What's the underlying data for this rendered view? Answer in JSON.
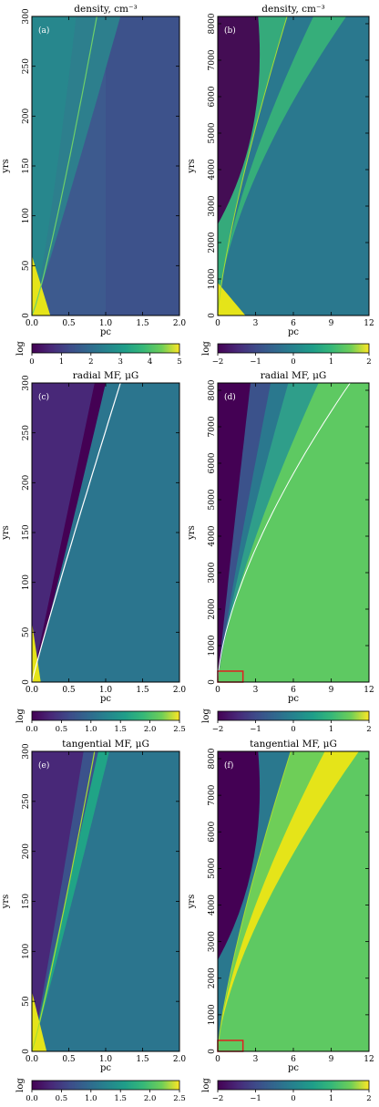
{
  "chart_data": [
    {
      "type": "heatmap",
      "panel_label": "(a)",
      "title": "density, cm⁻³",
      "xlabel": "pc",
      "ylabel": "yrs",
      "xlim": [
        0,
        2.0
      ],
      "ylim": [
        0,
        300
      ],
      "xticks": [
        "0.0",
        "0.5",
        "1.0",
        "1.5",
        "2.0"
      ],
      "yticks": [
        "0",
        "50",
        "100",
        "150",
        "200",
        "250",
        "300"
      ],
      "colorbar": {
        "label": "log",
        "range": [
          0,
          5
        ],
        "ticks": [
          "0",
          "1",
          "2",
          "3",
          "4",
          "5"
        ]
      },
      "colors": {
        "background": "#3d5a8e",
        "outer": "#3e4c89",
        "wedge": "#2d7f8d",
        "peak": "#e5e419",
        "curve": "#6ecf6a"
      },
      "features": {
        "shell_front_x_at_top": 1.2,
        "inner_line_x_at_top": 0.88,
        "lines": [
          "front"
        ]
      }
    },
    {
      "type": "heatmap",
      "panel_label": "(b)",
      "title": "density, cm⁻³",
      "xlabel": "pc",
      "ylabel": "yrs",
      "xlim": [
        0,
        12
      ],
      "ylim": [
        0,
        8200
      ],
      "xticks": [
        "0",
        "3",
        "6",
        "9",
        "12"
      ],
      "yticks": [
        "0",
        "1000",
        "2000",
        "3000",
        "4000",
        "5000",
        "6000",
        "7000",
        "8000"
      ],
      "colorbar": {
        "label": "log",
        "range": [
          -2,
          2
        ],
        "ticks": [
          "−2",
          "−1",
          "0",
          "1",
          "2"
        ]
      },
      "colors": {
        "background": "#2a788e",
        "cavity": "#440d54",
        "shell": "#38b777",
        "peak": "#e5e419",
        "curve": "#a8db34"
      },
      "features": {
        "cavity_bulge_x": 4.0,
        "front_x_at_top": 5.5,
        "outer_shell_x_at_top": 10.2,
        "inset_box": {
          "x": [
            0,
            2
          ],
          "y": [
            0,
            300
          ]
        }
      }
    },
    {
      "type": "heatmap",
      "panel_label": "(c)",
      "title": "radial MF, μG",
      "xlabel": "pc",
      "ylabel": "yrs",
      "xlim": [
        0,
        2.0
      ],
      "ylim": [
        0,
        300
      ],
      "xticks": [
        "0.0",
        "0.5",
        "1.0",
        "1.5",
        "2.0"
      ],
      "yticks": [
        "0",
        "50",
        "100",
        "150",
        "200",
        "250",
        "300"
      ],
      "colorbar": {
        "label": "log",
        "range": [
          0,
          2.5
        ],
        "ticks": [
          "0.0",
          "0.5",
          "1.0",
          "1.5",
          "2.0",
          "2.5"
        ]
      },
      "colors": {
        "background": "#2b758e",
        "inner": "#3b528b",
        "band": "#440154",
        "peak": "#e5e419",
        "curve": "#ffffff"
      },
      "features": {
        "band_x_at_top": 1.0,
        "white_line_x_at_top": 1.2
      }
    },
    {
      "type": "heatmap",
      "panel_label": "(d)",
      "title": "radial MF, μG",
      "xlabel": "pc",
      "ylabel": "yrs",
      "xlim": [
        0,
        12
      ],
      "ylim": [
        0,
        8200
      ],
      "xticks": [
        "0",
        "3",
        "6",
        "9",
        "12"
      ],
      "yticks": [
        "0",
        "1000",
        "2000",
        "3000",
        "4000",
        "5000",
        "6000",
        "7000",
        "8000"
      ],
      "colorbar": {
        "label": "log",
        "range": [
          -2,
          2
        ],
        "ticks": [
          "−2",
          "−1",
          "0",
          "1",
          "2"
        ]
      },
      "colors": {
        "background": "#5ec962",
        "cavity": "#440154",
        "mid": "#2a788e",
        "curve": "#ffffff"
      },
      "features": {
        "cavity_x_at_top": 5.6,
        "white_line_x_at_top": 10.5,
        "inset_box": {
          "x": [
            0,
            2
          ],
          "y": [
            0,
            300
          ]
        }
      }
    },
    {
      "type": "heatmap",
      "panel_label": "(e)",
      "title": "tangential MF, μG",
      "xlabel": "pc",
      "ylabel": "yrs",
      "xlim": [
        0,
        2.0
      ],
      "ylim": [
        0,
        300
      ],
      "xticks": [
        "0.0",
        "0.5",
        "1.0",
        "1.5",
        "2.0"
      ],
      "yticks": [
        "0",
        "50",
        "100",
        "150",
        "200",
        "250",
        "300"
      ],
      "colorbar": {
        "label": "log",
        "range": [
          0,
          2.5
        ],
        "ticks": [
          "0.0",
          "0.5",
          "1.0",
          "1.5",
          "2.0",
          "2.5"
        ]
      },
      "colors": {
        "background": "#2b758e",
        "inner": "#3b528b",
        "band": "#20a486",
        "peak": "#e5e419",
        "curve": "#a8db34"
      },
      "features": {
        "band_x_at_top": 1.05,
        "inner_line_x_at_top": 0.85
      }
    },
    {
      "type": "heatmap",
      "panel_label": "(f)",
      "title": "tangential MF, μG",
      "xlabel": "pc",
      "ylabel": "yrs",
      "xlim": [
        0,
        12
      ],
      "ylim": [
        0,
        8200
      ],
      "xticks": [
        "0",
        "3",
        "6",
        "9",
        "12"
      ],
      "yticks": [
        "0",
        "1000",
        "2000",
        "3000",
        "4000",
        "5000",
        "6000",
        "7000",
        "8000"
      ],
      "colorbar": {
        "label": "log",
        "range": [
          -2,
          2
        ],
        "ticks": [
          "−2",
          "−1",
          "0",
          "1",
          "2"
        ]
      },
      "colors": {
        "background": "#5ec962",
        "cavity": "#440154",
        "mid": "#2a788e",
        "shell": "#e5e419",
        "curve": "#a8db34"
      },
      "features": {
        "cavity_bulge_x": 4.0,
        "front_x_at_top": 5.8,
        "outer_shell_x_at_top": 11.2,
        "inset_box": {
          "x": [
            0,
            2
          ],
          "y": [
            0,
            300
          ]
        }
      }
    }
  ]
}
